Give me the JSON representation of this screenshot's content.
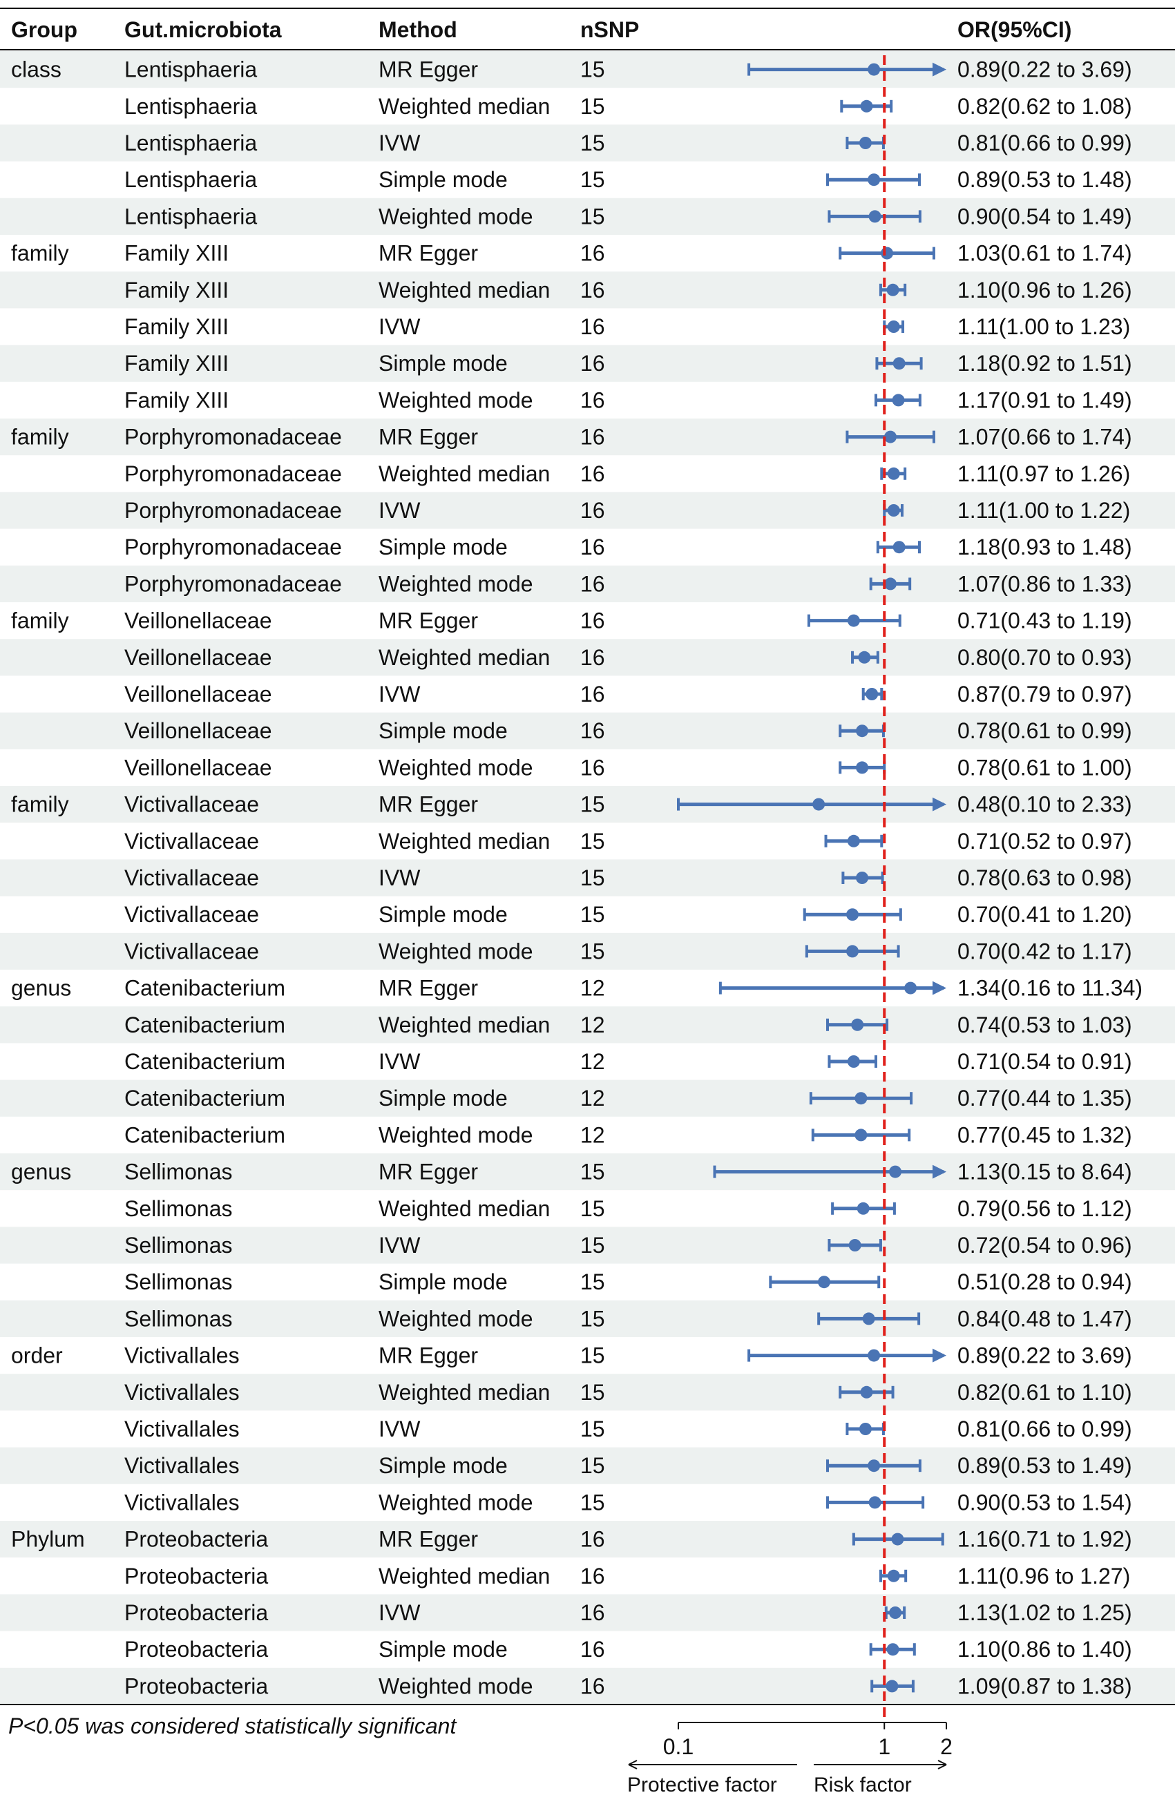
{
  "chart_data": {
    "type": "forest",
    "title": "",
    "xscale": "log",
    "xlim": [
      0.1,
      2
    ],
    "reference_line": 1,
    "columns": {
      "group": "Group",
      "microbiota": "Gut.microbiota",
      "method": "Method",
      "nsnp": "nSNP",
      "or": "OR(95%CI)"
    },
    "xticks": [
      {
        "value": 0.1,
        "label": "0.1"
      },
      {
        "value": 1,
        "label": "1"
      },
      {
        "value": 2,
        "label": "2"
      }
    ],
    "direction_labels": {
      "left": "Protective factor",
      "right": "Risk factor"
    },
    "footnote": "P<0.05 was considered statistically significant",
    "rows": [
      {
        "group": "class",
        "microbiota": "Lentisphaeria",
        "method": "MR Egger",
        "nsnp": "15",
        "or": 0.89,
        "lo": 0.22,
        "hi": 3.69,
        "or_text": "0.89(0.22 to 3.69)"
      },
      {
        "group": "",
        "microbiota": "Lentisphaeria",
        "method": "Weighted median",
        "nsnp": "15",
        "or": 0.82,
        "lo": 0.62,
        "hi": 1.08,
        "or_text": "0.82(0.62 to 1.08)"
      },
      {
        "group": "",
        "microbiota": "Lentisphaeria",
        "method": "IVW",
        "nsnp": "15",
        "or": 0.81,
        "lo": 0.66,
        "hi": 0.99,
        "or_text": "0.81(0.66 to 0.99)"
      },
      {
        "group": "",
        "microbiota": "Lentisphaeria",
        "method": "Simple mode",
        "nsnp": "15",
        "or": 0.89,
        "lo": 0.53,
        "hi": 1.48,
        "or_text": "0.89(0.53 to 1.48)"
      },
      {
        "group": "",
        "microbiota": "Lentisphaeria",
        "method": "Weighted mode",
        "nsnp": "15",
        "or": 0.9,
        "lo": 0.54,
        "hi": 1.49,
        "or_text": "0.90(0.54 to 1.49)"
      },
      {
        "group": "family",
        "microbiota": "Family XIII",
        "method": "MR Egger",
        "nsnp": "16",
        "or": 1.03,
        "lo": 0.61,
        "hi": 1.74,
        "or_text": "1.03(0.61 to 1.74)"
      },
      {
        "group": "",
        "microbiota": "Family XIII",
        "method": "Weighted median",
        "nsnp": "16",
        "or": 1.1,
        "lo": 0.96,
        "hi": 1.26,
        "or_text": "1.10(0.96 to 1.26)"
      },
      {
        "group": "",
        "microbiota": "Family XIII",
        "method": "IVW",
        "nsnp": "16",
        "or": 1.11,
        "lo": 1.0,
        "hi": 1.23,
        "or_text": "1.11(1.00 to 1.23)"
      },
      {
        "group": "",
        "microbiota": "Family XIII",
        "method": "Simple mode",
        "nsnp": "16",
        "or": 1.18,
        "lo": 0.92,
        "hi": 1.51,
        "or_text": "1.18(0.92 to 1.51)"
      },
      {
        "group": "",
        "microbiota": "Family XIII",
        "method": "Weighted mode",
        "nsnp": "16",
        "or": 1.17,
        "lo": 0.91,
        "hi": 1.49,
        "or_text": "1.17(0.91 to 1.49)"
      },
      {
        "group": "family",
        "microbiota": "Porphyromonadaceae",
        "method": "MR Egger",
        "nsnp": "16",
        "or": 1.07,
        "lo": 0.66,
        "hi": 1.74,
        "or_text": "1.07(0.66 to 1.74)"
      },
      {
        "group": "",
        "microbiota": "Porphyromonadaceae",
        "method": "Weighted median",
        "nsnp": "16",
        "or": 1.11,
        "lo": 0.97,
        "hi": 1.26,
        "or_text": "1.11(0.97 to 1.26)"
      },
      {
        "group": "",
        "microbiota": "Porphyromonadaceae",
        "method": "IVW",
        "nsnp": "16",
        "or": 1.11,
        "lo": 1.0,
        "hi": 1.22,
        "or_text": "1.11(1.00 to 1.22)"
      },
      {
        "group": "",
        "microbiota": "Porphyromonadaceae",
        "method": "Simple mode",
        "nsnp": "16",
        "or": 1.18,
        "lo": 0.93,
        "hi": 1.48,
        "or_text": "1.18(0.93 to 1.48)"
      },
      {
        "group": "",
        "microbiota": "Porphyromonadaceae",
        "method": "Weighted mode",
        "nsnp": "16",
        "or": 1.07,
        "lo": 0.86,
        "hi": 1.33,
        "or_text": "1.07(0.86 to 1.33)"
      },
      {
        "group": "family",
        "microbiota": "Veillonellaceae",
        "method": "MR Egger",
        "nsnp": "16",
        "or": 0.71,
        "lo": 0.43,
        "hi": 1.19,
        "or_text": "0.71(0.43 to 1.19)"
      },
      {
        "group": "",
        "microbiota": "Veillonellaceae",
        "method": "Weighted median",
        "nsnp": "16",
        "or": 0.8,
        "lo": 0.7,
        "hi": 0.93,
        "or_text": "0.80(0.70 to 0.93)"
      },
      {
        "group": "",
        "microbiota": "Veillonellaceae",
        "method": "IVW",
        "nsnp": "16",
        "or": 0.87,
        "lo": 0.79,
        "hi": 0.97,
        "or_text": "0.87(0.79 to 0.97)"
      },
      {
        "group": "",
        "microbiota": "Veillonellaceae",
        "method": "Simple mode",
        "nsnp": "16",
        "or": 0.78,
        "lo": 0.61,
        "hi": 0.99,
        "or_text": "0.78(0.61 to 0.99)"
      },
      {
        "group": "",
        "microbiota": "Veillonellaceae",
        "method": "Weighted mode",
        "nsnp": "16",
        "or": 0.78,
        "lo": 0.61,
        "hi": 1.0,
        "or_text": "0.78(0.61 to 1.00)"
      },
      {
        "group": "family",
        "microbiota": "Victivallaceae",
        "method": "MR Egger",
        "nsnp": "15",
        "or": 0.48,
        "lo": 0.1,
        "hi": 2.33,
        "or_text": "0.48(0.10 to 2.33)"
      },
      {
        "group": "",
        "microbiota": "Victivallaceae",
        "method": "Weighted median",
        "nsnp": "15",
        "or": 0.71,
        "lo": 0.52,
        "hi": 0.97,
        "or_text": "0.71(0.52 to 0.97)"
      },
      {
        "group": "",
        "microbiota": "Victivallaceae",
        "method": "IVW",
        "nsnp": "15",
        "or": 0.78,
        "lo": 0.63,
        "hi": 0.98,
        "or_text": "0.78(0.63 to 0.98)"
      },
      {
        "group": "",
        "microbiota": "Victivallaceae",
        "method": "Simple mode",
        "nsnp": "15",
        "or": 0.7,
        "lo": 0.41,
        "hi": 1.2,
        "or_text": "0.70(0.41 to 1.20)"
      },
      {
        "group": "",
        "microbiota": "Victivallaceae",
        "method": "Weighted mode",
        "nsnp": "15",
        "or": 0.7,
        "lo": 0.42,
        "hi": 1.17,
        "or_text": "0.70(0.42 to 1.17)"
      },
      {
        "group": "genus",
        "microbiota": "Catenibacterium",
        "method": "MR Egger",
        "nsnp": "12",
        "or": 1.34,
        "lo": 0.16,
        "hi": 11.34,
        "or_text": "1.34(0.16 to 11.34)"
      },
      {
        "group": "",
        "microbiota": "Catenibacterium",
        "method": "Weighted median",
        "nsnp": "12",
        "or": 0.74,
        "lo": 0.53,
        "hi": 1.03,
        "or_text": "0.74(0.53 to 1.03)"
      },
      {
        "group": "",
        "microbiota": "Catenibacterium",
        "method": "IVW",
        "nsnp": "12",
        "or": 0.71,
        "lo": 0.54,
        "hi": 0.91,
        "or_text": "0.71(0.54 to 0.91)"
      },
      {
        "group": "",
        "microbiota": "Catenibacterium",
        "method": "Simple mode",
        "nsnp": "12",
        "or": 0.77,
        "lo": 0.44,
        "hi": 1.35,
        "or_text": "0.77(0.44 to 1.35)"
      },
      {
        "group": "",
        "microbiota": "Catenibacterium",
        "method": "Weighted mode",
        "nsnp": "12",
        "or": 0.77,
        "lo": 0.45,
        "hi": 1.32,
        "or_text": "0.77(0.45 to 1.32)"
      },
      {
        "group": "genus",
        "microbiota": "Sellimonas",
        "method": "MR Egger",
        "nsnp": "15",
        "or": 1.13,
        "lo": 0.15,
        "hi": 8.64,
        "or_text": "1.13(0.15 to 8.64)"
      },
      {
        "group": "",
        "microbiota": "Sellimonas",
        "method": "Weighted median",
        "nsnp": "15",
        "or": 0.79,
        "lo": 0.56,
        "hi": 1.12,
        "or_text": "0.79(0.56 to 1.12)"
      },
      {
        "group": "",
        "microbiota": "Sellimonas",
        "method": "IVW",
        "nsnp": "15",
        "or": 0.72,
        "lo": 0.54,
        "hi": 0.96,
        "or_text": "0.72(0.54 to 0.96)"
      },
      {
        "group": "",
        "microbiota": "Sellimonas",
        "method": "Simple mode",
        "nsnp": "15",
        "or": 0.51,
        "lo": 0.28,
        "hi": 0.94,
        "or_text": "0.51(0.28 to 0.94)"
      },
      {
        "group": "",
        "microbiota": "Sellimonas",
        "method": "Weighted mode",
        "nsnp": "15",
        "or": 0.84,
        "lo": 0.48,
        "hi": 1.47,
        "or_text": "0.84(0.48 to 1.47)"
      },
      {
        "group": "order",
        "microbiota": "Victivallales",
        "method": "MR Egger",
        "nsnp": "15",
        "or": 0.89,
        "lo": 0.22,
        "hi": 3.69,
        "or_text": "0.89(0.22 to 3.69)"
      },
      {
        "group": "",
        "microbiota": "Victivallales",
        "method": "Weighted median",
        "nsnp": "15",
        "or": 0.82,
        "lo": 0.61,
        "hi": 1.1,
        "or_text": "0.82(0.61 to 1.10)"
      },
      {
        "group": "",
        "microbiota": "Victivallales",
        "method": "IVW",
        "nsnp": "15",
        "or": 0.81,
        "lo": 0.66,
        "hi": 0.99,
        "or_text": "0.81(0.66 to 0.99)"
      },
      {
        "group": "",
        "microbiota": "Victivallales",
        "method": "Simple mode",
        "nsnp": "15",
        "or": 0.89,
        "lo": 0.53,
        "hi": 1.49,
        "or_text": "0.89(0.53 to 1.49)"
      },
      {
        "group": "",
        "microbiota": "Victivallales",
        "method": "Weighted mode",
        "nsnp": "15",
        "or": 0.9,
        "lo": 0.53,
        "hi": 1.54,
        "or_text": "0.90(0.53 to 1.54)"
      },
      {
        "group": "Phylum",
        "microbiota": "Proteobacteria",
        "method": "MR Egger",
        "nsnp": "16",
        "or": 1.16,
        "lo": 0.71,
        "hi": 1.92,
        "or_text": "1.16(0.71 to 1.92)"
      },
      {
        "group": "",
        "microbiota": "Proteobacteria",
        "method": "Weighted median",
        "nsnp": "16",
        "or": 1.11,
        "lo": 0.96,
        "hi": 1.27,
        "or_text": "1.11(0.96 to 1.27)"
      },
      {
        "group": "",
        "microbiota": "Proteobacteria",
        "method": "IVW",
        "nsnp": "16",
        "or": 1.13,
        "lo": 1.02,
        "hi": 1.25,
        "or_text": "1.13(1.02 to 1.25)"
      },
      {
        "group": "",
        "microbiota": "Proteobacteria",
        "method": "Simple mode",
        "nsnp": "16",
        "or": 1.1,
        "lo": 0.86,
        "hi": 1.4,
        "or_text": "1.10(0.86 to 1.40)"
      },
      {
        "group": "",
        "microbiota": "Proteobacteria",
        "method": "Weighted mode",
        "nsnp": "16",
        "or": 1.09,
        "lo": 0.87,
        "hi": 1.38,
        "or_text": "1.09(0.87 to 1.38)"
      }
    ],
    "colors": {
      "marker": "#4a74b4",
      "reference": "#e0201b",
      "stripe": "#edf1f0",
      "text": "#111111"
    }
  }
}
